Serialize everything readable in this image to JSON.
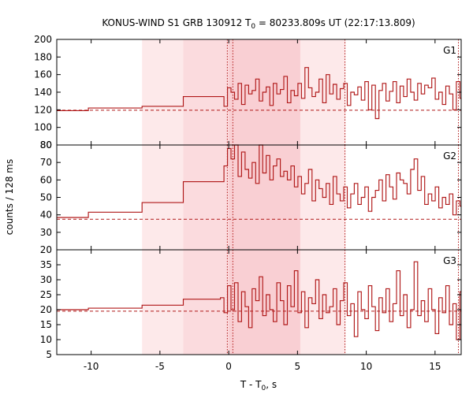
{
  "chart_data": {
    "type": "line",
    "title": {
      "prefix": "KONUS-WIND S1 GRB 130912 T",
      "sub": "0",
      "suffix": " = 80233.809s UT (22:17:13.809)"
    },
    "xlabel": {
      "prefix": "T - T",
      "sub": "0",
      "suffix": ", s"
    },
    "ylabel": "counts / 128 ms",
    "xlim": [
      -12.5,
      16.9
    ],
    "xticks": [
      -10,
      -5,
      0,
      5,
      10,
      15
    ],
    "xtick_labels": [
      "-10",
      "-5",
      "0",
      "5",
      "10",
      "15"
    ],
    "shading": [
      {
        "from": -6.3,
        "to": 8.5,
        "color": "#fde9ea"
      },
      {
        "from": -3.3,
        "to": 5.2,
        "color": "#fbdbde"
      },
      {
        "from": 0.0,
        "to": 5.2,
        "color": "#f9cfd3"
      }
    ],
    "markers": [
      -0.1,
      0.3,
      8.45,
      16.7
    ],
    "colors": {
      "curve": "#b01818"
    },
    "panels": [
      {
        "name": "G1",
        "ylim": [
          80,
          200
        ],
        "yticks": [
          80,
          100,
          120,
          140,
          160,
          180,
          200
        ],
        "background": 119.5,
        "x_start": -12.5,
        "step_edges": [
          -12.5,
          -10.2,
          -6.3,
          -3.3,
          -0.6
        ],
        "step_values": [
          119,
          122,
          124,
          135
        ],
        "bin": 0.256,
        "values": [
          135,
          124,
          145,
          140,
          132,
          150,
          126,
          148,
          138,
          142,
          155,
          130,
          140,
          146,
          125,
          150,
          138,
          143,
          158,
          128,
          142,
          136,
          150,
          133,
          168,
          145,
          135,
          140,
          155,
          128,
          160,
          138,
          149,
          132,
          144,
          150,
          125,
          140,
          137,
          146,
          131,
          152,
          120,
          148,
          110,
          142,
          150,
          130,
          141,
          152,
          128,
          147,
          135,
          155,
          140,
          131,
          150,
          138,
          148,
          145,
          156,
          132,
          140,
          126,
          147,
          138,
          120,
          152,
          133,
          124,
          138,
          144,
          121,
          134,
          118,
          130,
          140,
          125,
          112,
          135,
          128,
          120,
          144,
          130,
          110,
          126,
          138,
          122,
          132,
          116,
          127,
          139,
          120,
          130,
          112,
          125,
          135,
          118,
          129,
          105,
          140,
          123,
          130,
          115,
          126,
          136,
          112,
          128,
          118,
          131,
          108,
          125,
          137,
          115,
          128,
          120,
          106,
          132,
          124,
          115,
          130,
          118,
          126,
          110,
          135,
          120,
          113,
          127,
          119,
          132
        ]
      },
      {
        "name": "G2",
        "ylim": [
          20,
          80
        ],
        "yticks": [
          20,
          30,
          40,
          50,
          60,
          70,
          80
        ],
        "background": 37.5,
        "x_start": -12.5,
        "step_edges": [
          -12.5,
          -10.2,
          -6.3,
          -3.3,
          -0.6
        ],
        "step_values": [
          38.5,
          41.5,
          47,
          59
        ],
        "bin": 0.256,
        "values": [
          59,
          68,
          78,
          72,
          80,
          62,
          76,
          66,
          61,
          70,
          58,
          84,
          64,
          74,
          60,
          68,
          72,
          62,
          65,
          60,
          68,
          56,
          62,
          52,
          58,
          66,
          48,
          60,
          55,
          50,
          58,
          46,
          62,
          52,
          48,
          56,
          44,
          52,
          58,
          46,
          50,
          56,
          42,
          50,
          54,
          60,
          48,
          63,
          56,
          49,
          64,
          60,
          58,
          52,
          66,
          72,
          54,
          62,
          46,
          52,
          48,
          56,
          44,
          50,
          46,
          52,
          40,
          48,
          45,
          50,
          38,
          46,
          42,
          36,
          44,
          40,
          33,
          46,
          40,
          42,
          36,
          43,
          38,
          34,
          44,
          39,
          37,
          32,
          42,
          38,
          44,
          35,
          40,
          37,
          30,
          42,
          36,
          39,
          34,
          41,
          37,
          44,
          33,
          39,
          36,
          42,
          31,
          38,
          35,
          40,
          44,
          36,
          33,
          41,
          38,
          45,
          34,
          40,
          37,
          43,
          32,
          39,
          36,
          41,
          34,
          38,
          44,
          35,
          40,
          37,
          42
        ]
      },
      {
        "name": "G3",
        "ylim": [
          5,
          40
        ],
        "yticks": [
          5,
          10,
          15,
          20,
          25,
          30,
          35
        ],
        "background": 19.5,
        "x_start": -12.5,
        "step_edges": [
          -12.5,
          -10.2,
          -6.3,
          -3.3,
          -0.6
        ],
        "step_values": [
          20,
          20.5,
          21.5,
          23.5
        ],
        "bin": 0.256,
        "values": [
          24,
          19,
          28,
          20,
          29,
          16,
          26,
          21,
          14,
          27,
          23,
          31,
          18,
          25,
          20,
          16,
          29,
          23,
          15,
          28,
          21,
          33,
          19,
          26,
          14,
          24,
          22,
          30,
          17,
          25,
          19,
          21,
          27,
          15,
          23,
          29,
          18,
          22,
          11,
          26,
          20,
          17,
          28,
          21,
          13,
          24,
          19,
          27,
          16,
          22,
          33,
          18,
          25,
          14,
          20,
          36,
          18,
          23,
          16,
          27,
          20,
          12,
          24,
          19,
          28,
          15,
          22,
          10,
          26,
          18,
          21,
          14,
          29,
          17,
          24,
          20,
          11,
          27,
          19,
          15,
          23,
          26,
          13,
          21,
          18,
          25,
          9,
          22,
          16,
          28,
          20,
          14,
          24,
          12,
          26,
          19,
          22,
          15,
          27,
          17,
          21,
          11,
          25,
          18,
          23,
          14,
          30,
          19,
          16,
          24,
          21,
          13,
          26,
          18,
          22,
          32,
          17,
          20,
          25,
          15,
          23,
          19,
          28,
          16,
          21,
          24,
          18,
          22,
          20
        ]
      }
    ]
  }
}
